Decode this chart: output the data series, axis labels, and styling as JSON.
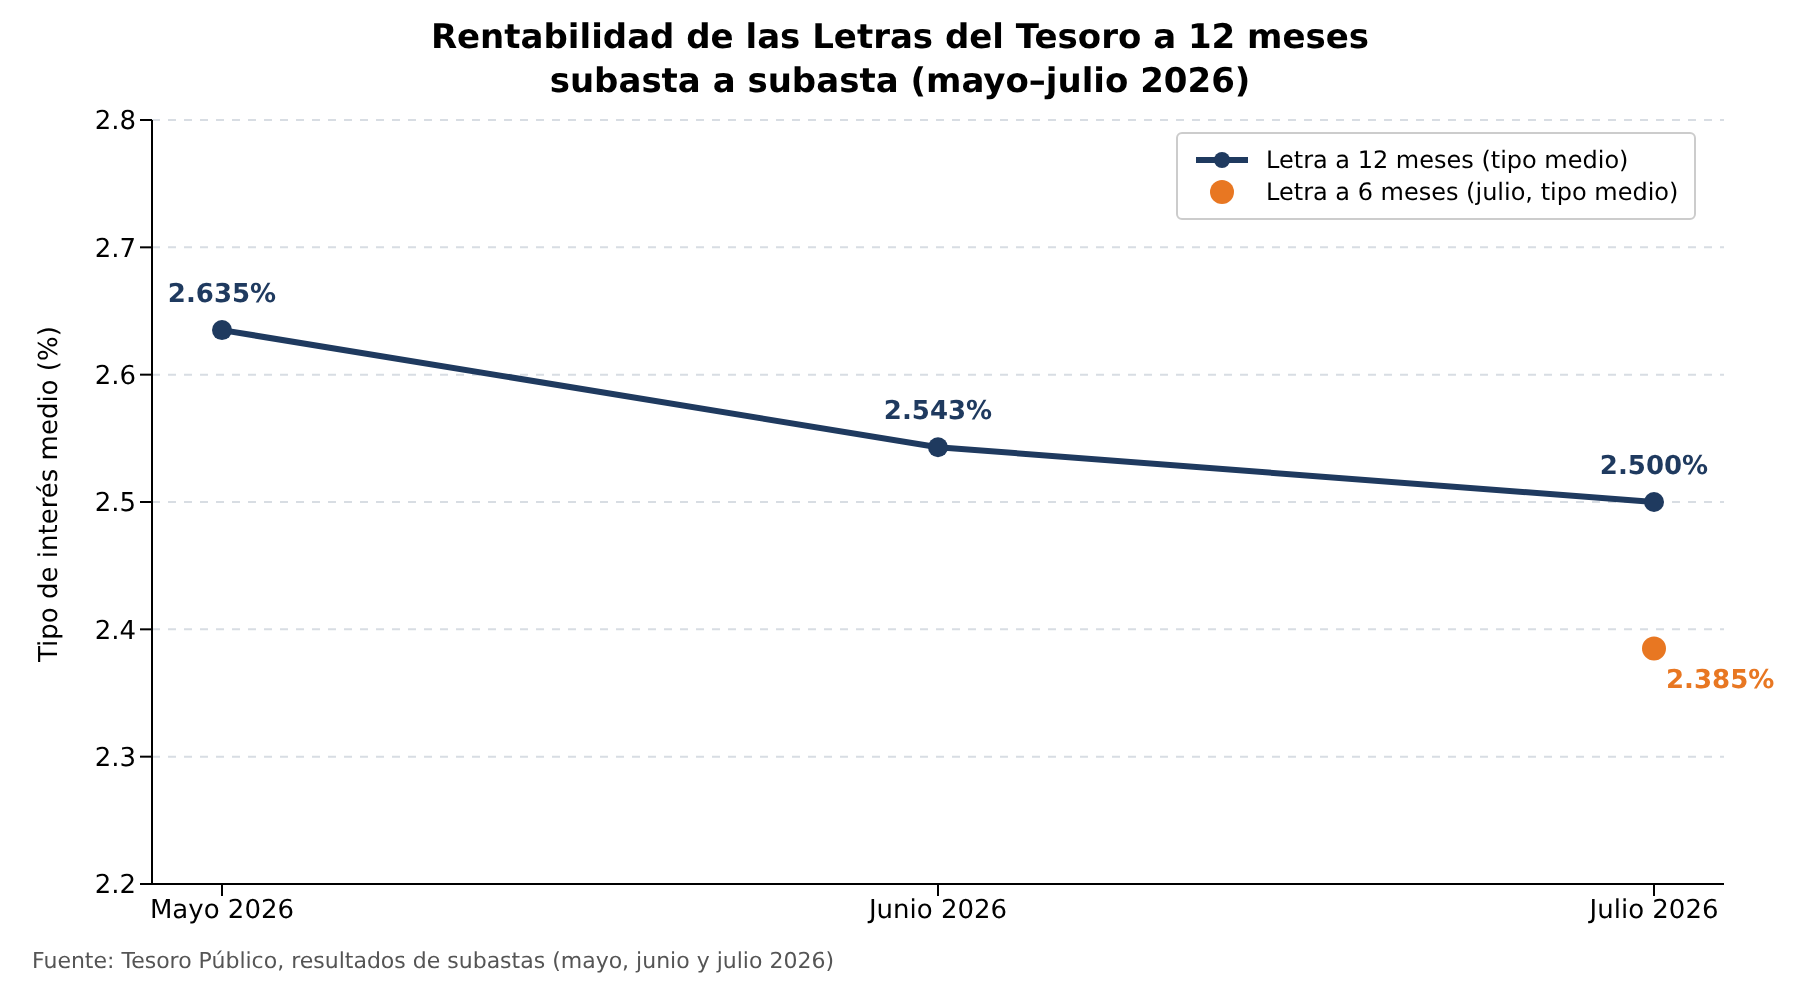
{
  "chart_data": {
    "type": "line",
    "title": "Rentabilidad de las Letras del Tesoro a 12 meses\nsubasta a subasta (mayo–julio 2026)",
    "ylabel": "Tipo de interés medio (%)",
    "categories": [
      "Mayo 2026",
      "Junio 2026",
      "Julio 2026"
    ],
    "series": [
      {
        "name": "Letra a 12 meses (tipo medio)",
        "color": "#1f3a5f",
        "values": [
          2.635,
          2.543,
          2.5
        ],
        "value_labels": [
          "2.635%",
          "2.543%",
          "2.500%"
        ]
      },
      {
        "name": "Letra a 6 meses (julio, tipo medio)",
        "type": "scatter",
        "color": "#e87722",
        "values": [
          null,
          null,
          2.385
        ],
        "value_labels": [
          null,
          null,
          "2.385%"
        ]
      }
    ],
    "ylim": [
      2.2,
      2.8
    ],
    "yticks": [
      2.2,
      2.3,
      2.4,
      2.5,
      2.6,
      2.7,
      2.8
    ],
    "grid": "y",
    "legend": "top right",
    "marker": "circle",
    "line_style": "solid",
    "annotations": [
      "Fuente: Tesoro Público, resultados de subastas (mayo, junio y julio 2026)"
    ]
  }
}
